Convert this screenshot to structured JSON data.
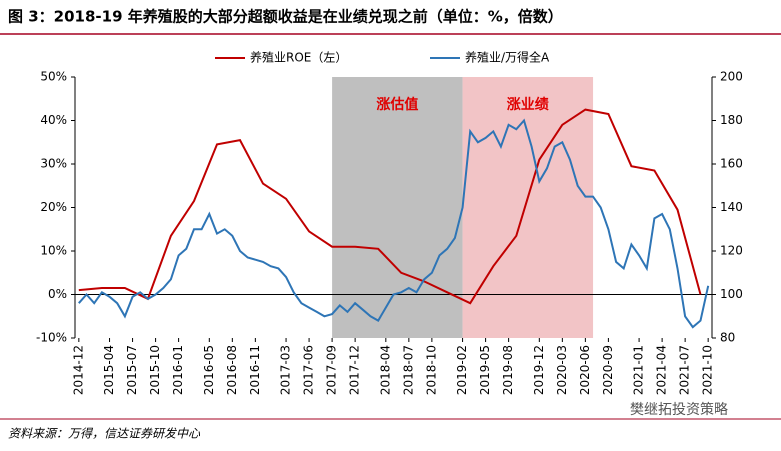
{
  "chart_data": {
    "type": "line",
    "title": "图 3：2018-19 年养殖股的大部分超额收益是在业绩兑现之前（单位：%，倍数）",
    "source": "资料来源：万得，信达证券研发中心",
    "watermark": "樊继拓投资策略",
    "xlim": [
      "2014-12",
      "2021-10"
    ],
    "xticks": [
      "2014-12",
      "2015-04",
      "2015-07",
      "2015-10",
      "2016-01",
      "2016-05",
      "2016-08",
      "2016-11",
      "2017-03",
      "2017-06",
      "2017-09",
      "2017-12",
      "2018-04",
      "2018-07",
      "2018-10",
      "2019-02",
      "2019-05",
      "2019-08",
      "2019-12",
      "2020-03",
      "2020-06",
      "2020-09",
      "2021-01",
      "2021-04",
      "2021-07",
      "2021-10"
    ],
    "ylim": [
      -10,
      50
    ],
    "yticks": [
      {
        "value": -10,
        "label": "-10%"
      },
      {
        "value": 0,
        "label": "0%"
      },
      {
        "value": 10,
        "label": "10%"
      },
      {
        "value": 20,
        "label": "20%"
      },
      {
        "value": 30,
        "label": "30%"
      },
      {
        "value": 40,
        "label": "40%"
      },
      {
        "value": 50,
        "label": "50%"
      }
    ],
    "y2lim": [
      80,
      200
    ],
    "y2ticks": [
      80,
      100,
      120,
      140,
      160,
      180,
      200
    ],
    "regions": [
      {
        "start": "2017-09",
        "end": "2019-02",
        "label": "涨估值",
        "color": "#bfbfbf"
      },
      {
        "start": "2019-02",
        "end": "2020-07",
        "label": "涨业绩",
        "color": "#f2c4c6"
      }
    ],
    "series": [
      {
        "name": "养殖业ROE（左）",
        "color": "#c00000",
        "axis": "y",
        "x": [
          "2014-12",
          "2015-03",
          "2015-06",
          "2015-09",
          "2015-12",
          "2016-03",
          "2016-06",
          "2016-09",
          "2016-12",
          "2017-03",
          "2017-06",
          "2017-09",
          "2017-12",
          "2018-03",
          "2018-06",
          "2018-09",
          "2018-12",
          "2019-03",
          "2019-06",
          "2019-09",
          "2019-12",
          "2020-03",
          "2020-06",
          "2020-09",
          "2020-12",
          "2021-03",
          "2021-06",
          "2021-09"
        ],
        "values": [
          1,
          1.5,
          1.5,
          -1,
          13.5,
          21.5,
          34.5,
          35.5,
          25.5,
          22,
          14.5,
          11,
          11,
          10.5,
          5,
          3,
          0.5,
          -2,
          6.5,
          13.5,
          31,
          39,
          42.5,
          41.5,
          29.5,
          28.5,
          19.5,
          0
        ]
      },
      {
        "name": "养殖业/万得全A",
        "color": "#2e75b6",
        "axis": "y2",
        "x": [
          "2014-12",
          "2015-01",
          "2015-02",
          "2015-03",
          "2015-04",
          "2015-05",
          "2015-06",
          "2015-07",
          "2015-08",
          "2015-09",
          "2015-10",
          "2015-11",
          "2015-12",
          "2016-01",
          "2016-02",
          "2016-03",
          "2016-04",
          "2016-05",
          "2016-06",
          "2016-07",
          "2016-08",
          "2016-09",
          "2016-10",
          "2016-11",
          "2016-12",
          "2017-01",
          "2017-02",
          "2017-03",
          "2017-04",
          "2017-05",
          "2017-06",
          "2017-07",
          "2017-08",
          "2017-09",
          "2017-10",
          "2017-11",
          "2017-12",
          "2018-01",
          "2018-02",
          "2018-03",
          "2018-04",
          "2018-05",
          "2018-06",
          "2018-07",
          "2018-08",
          "2018-09",
          "2018-10",
          "2018-11",
          "2018-12",
          "2019-01",
          "2019-02",
          "2019-03",
          "2019-04",
          "2019-05",
          "2019-06",
          "2019-07",
          "2019-08",
          "2019-09",
          "2019-10",
          "2019-11",
          "2019-12",
          "2020-01",
          "2020-02",
          "2020-03",
          "2020-04",
          "2020-05",
          "2020-06",
          "2020-07",
          "2020-08",
          "2020-09",
          "2020-10",
          "2020-11",
          "2020-12",
          "2021-01",
          "2021-02",
          "2021-03",
          "2021-04",
          "2021-05",
          "2021-06",
          "2021-07",
          "2021-08",
          "2021-09",
          "2021-10"
        ],
        "values": [
          96,
          100,
          96,
          101,
          99,
          96,
          90,
          99,
          101,
          98,
          100,
          103,
          107,
          118,
          121,
          130,
          130,
          137,
          128,
          130,
          127,
          120,
          117,
          116,
          115,
          113,
          112,
          108,
          101,
          96,
          94,
          92,
          90,
          91,
          95,
          92,
          96,
          93,
          90,
          88,
          94,
          100,
          101,
          103,
          101,
          107,
          110,
          118,
          121,
          126,
          140,
          175,
          170,
          172,
          175,
          168,
          178,
          176,
          180,
          168,
          152,
          158,
          168,
          170,
          162,
          150,
          145,
          145,
          140,
          130,
          115,
          112,
          123,
          118,
          112,
          135,
          137,
          130,
          112,
          90,
          85,
          88,
          104
        ]
      }
    ]
  }
}
